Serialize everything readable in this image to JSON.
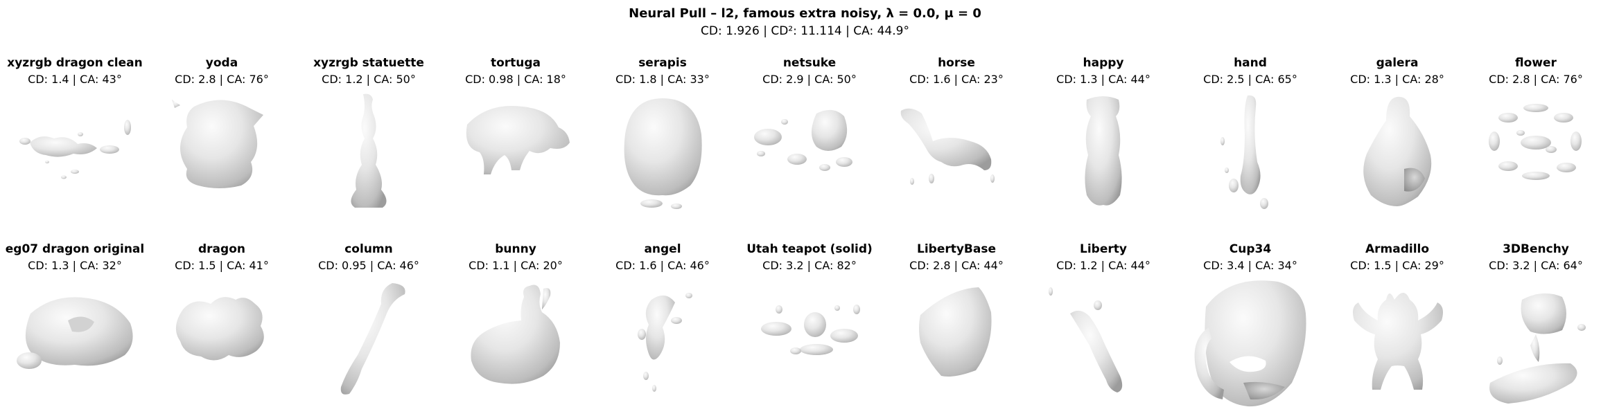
{
  "figure": {
    "title": "Neural Pull – l2, famous extra noisy, λ = 0.0, μ = 0",
    "summary": "CD: 1.926 | CD²: 11.114 | CA: 44.9°"
  },
  "rows": [
    [
      {
        "name": "xyzrgb dragon clean",
        "metrics": "CD: 1.4 | CA: 43°",
        "shape": "dragon-fragments-icon"
      },
      {
        "name": "yoda",
        "metrics": "CD: 2.8 | CA: 76°",
        "shape": "yoda-blob-icon"
      },
      {
        "name": "xyzrgb statuette",
        "metrics": "CD: 1.2 | CA: 50°",
        "shape": "statuette-icon"
      },
      {
        "name": "tortuga",
        "metrics": "CD: 0.98 | CA: 18°",
        "shape": "tortuga-icon"
      },
      {
        "name": "serapis",
        "metrics": "CD: 1.8 | CA: 33°",
        "shape": "serapis-head-icon"
      },
      {
        "name": "netsuke",
        "metrics": "CD: 2.9 | CA: 50°",
        "shape": "netsuke-fragments-icon"
      },
      {
        "name": "horse",
        "metrics": "CD: 1.6 | CA: 23°",
        "shape": "horse-icon"
      },
      {
        "name": "happy",
        "metrics": "CD: 1.3 | CA: 44°",
        "shape": "happy-buddha-icon"
      },
      {
        "name": "hand",
        "metrics": "CD: 2.5 | CA: 65°",
        "shape": "hand-icon"
      },
      {
        "name": "galera",
        "metrics": "CD: 1.3 | CA: 28°",
        "shape": "galera-icon"
      },
      {
        "name": "flower",
        "metrics": "CD: 2.8 | CA: 76°",
        "shape": "flower-ring-icon"
      }
    ],
    [
      {
        "name": "eg07 dragon original",
        "metrics": "CD: 1.3 | CA: 32°",
        "shape": "eg07-dragon-icon"
      },
      {
        "name": "dragon",
        "metrics": "CD: 1.5 | CA: 41°",
        "shape": "dragon-blob-icon"
      },
      {
        "name": "column",
        "metrics": "CD: 0.95 | CA: 46°",
        "shape": "column-icon"
      },
      {
        "name": "bunny",
        "metrics": "CD: 1.1 | CA: 20°",
        "shape": "bunny-icon"
      },
      {
        "name": "angel",
        "metrics": "CD: 1.6 | CA: 46°",
        "shape": "angel-fragments-icon"
      },
      {
        "name": "Utah teapot (solid)",
        "metrics": "CD: 3.2 | CA: 82°",
        "shape": "teapot-fragments-icon"
      },
      {
        "name": "LibertyBase",
        "metrics": "CD: 2.8 | CA: 44°",
        "shape": "liberty-base-icon"
      },
      {
        "name": "Liberty",
        "metrics": "CD: 1.2 | CA: 44°",
        "shape": "liberty-icon"
      },
      {
        "name": "Cup34",
        "metrics": "CD: 3.4 | CA: 34°",
        "shape": "cup-icon"
      },
      {
        "name": "Armadillo",
        "metrics": "CD: 1.5 | CA: 29°",
        "shape": "armadillo-icon"
      },
      {
        "name": "3DBenchy",
        "metrics": "CD: 3.2 | CA: 64°",
        "shape": "benchy-icon"
      }
    ]
  ],
  "colors": {
    "shape_light": "#f2f2f2",
    "shape_mid": "#d9d9d9",
    "shape_dark": "#a8a8a8",
    "background": "#ffffff"
  }
}
